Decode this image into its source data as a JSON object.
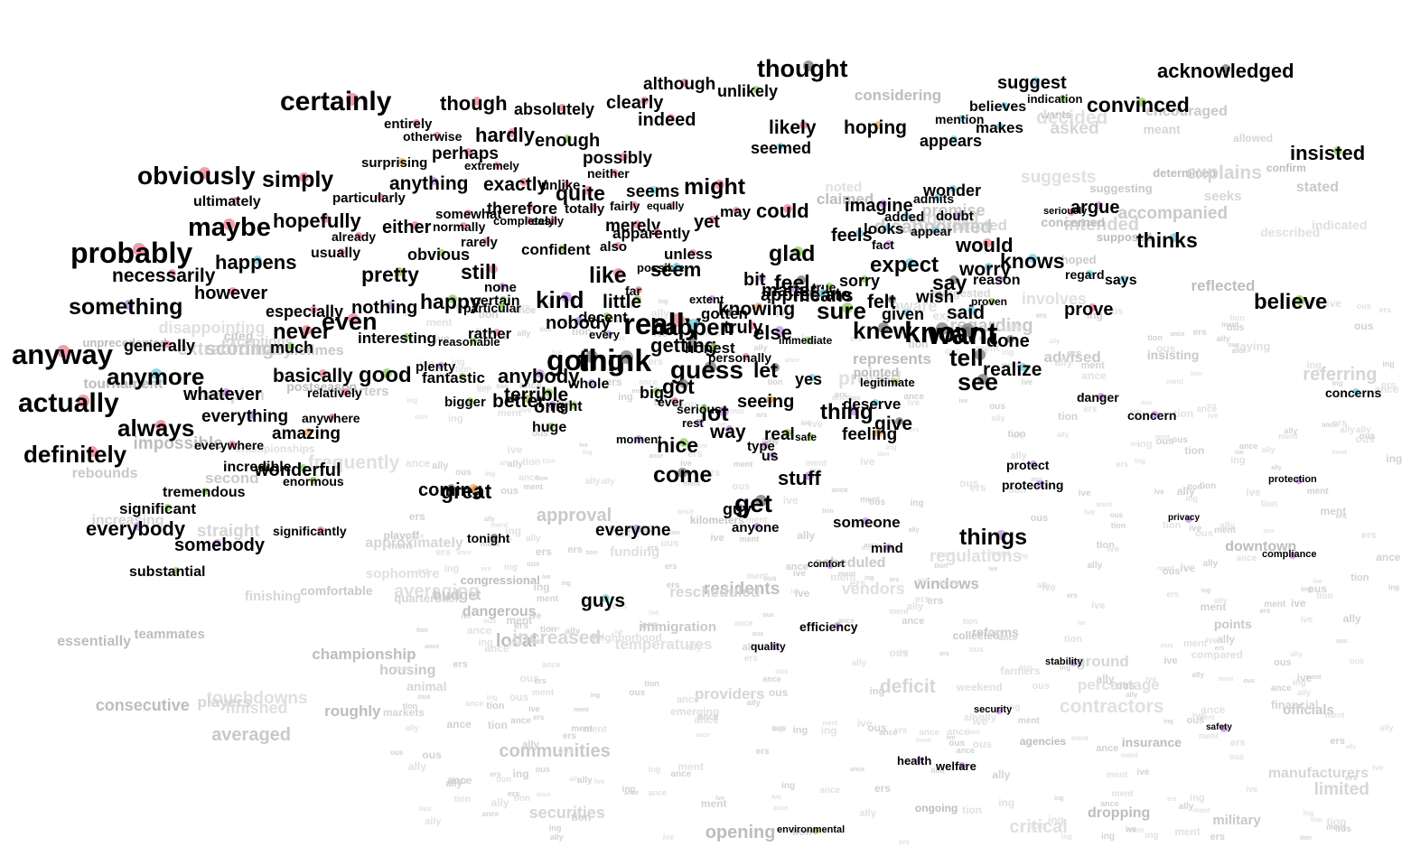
{
  "words": [
    {
      "text": "certainly",
      "c": "#f28b9b"
    },
    {
      "text": "obviously",
      "c": "#f28b9b"
    },
    {
      "text": "simply",
      "c": "#f28b9b"
    },
    {
      "text": "maybe",
      "c": "#f28b9b"
    },
    {
      "text": "probably",
      "c": "#f28b9b"
    },
    {
      "text": "hopefully",
      "c": "#f28b9b"
    },
    {
      "text": "ultimately",
      "c": "#f28b9b"
    },
    {
      "text": "particularly",
      "c": "#f28b9b"
    },
    {
      "text": "happens",
      "c": "#7fd3e8"
    },
    {
      "text": "necessarily",
      "c": "#f28b9b"
    },
    {
      "text": "usually",
      "c": "#f28b9b"
    },
    {
      "text": "already",
      "c": "#f28b9b"
    },
    {
      "text": "something",
      "c": "#c79be8"
    },
    {
      "text": "however",
      "c": "#f28b9b"
    },
    {
      "text": "especially",
      "c": "#f28b9b"
    },
    {
      "text": "anyway",
      "c": "#f28b9b"
    },
    {
      "text": "generally",
      "c": "#f28b9b"
    },
    {
      "text": "never",
      "c": "#f28b9b"
    },
    {
      "text": "much",
      "c": "#9bd36b"
    },
    {
      "text": "even",
      "c": "#f28b9b"
    },
    {
      "text": "anymore",
      "c": "#7fd3e8"
    },
    {
      "text": "actually",
      "c": "#f28b9b"
    },
    {
      "text": "whatever",
      "c": "#c79be8"
    },
    {
      "text": "basically",
      "c": "#f28b9b"
    },
    {
      "text": "relatively",
      "c": "#f28b9b"
    },
    {
      "text": "always",
      "c": "#f28b9b"
    },
    {
      "text": "everything",
      "c": "#c79be8"
    },
    {
      "text": "anywhere",
      "c": "#f28b9b"
    },
    {
      "text": "definitely",
      "c": "#f28b9b"
    },
    {
      "text": "amazing",
      "c": "#f5b36b"
    },
    {
      "text": "everywhere",
      "c": "#f28b9b"
    },
    {
      "text": "incredible",
      "c": "#9bd36b"
    },
    {
      "text": "wonderful",
      "c": "#9bd36b"
    },
    {
      "text": "enormous",
      "c": "#9bd36b"
    },
    {
      "text": "tremendous",
      "c": "#9bd36b"
    },
    {
      "text": "significant",
      "c": "#9bd36b"
    },
    {
      "text": "everybody",
      "c": "#c79be8"
    },
    {
      "text": "somebody",
      "c": "#c79be8"
    },
    {
      "text": "significantly",
      "c": "#f28b9b"
    },
    {
      "text": "substantial",
      "c": "#9bd36b"
    },
    {
      "text": "though",
      "c": "#f28b9b"
    },
    {
      "text": "absolutely",
      "c": "#f28b9b"
    },
    {
      "text": "clearly",
      "c": "#f28b9b"
    },
    {
      "text": "although",
      "c": "#f28b9b"
    },
    {
      "text": "unlikely",
      "c": "#9bd36b"
    },
    {
      "text": "thought",
      "c": "#888888"
    },
    {
      "text": "indeed",
      "c": "#f28b9b"
    },
    {
      "text": "entirely",
      "c": "#f28b9b"
    },
    {
      "text": "otherwise",
      "c": "#f28b9b"
    },
    {
      "text": "hardly",
      "c": "#f28b9b"
    },
    {
      "text": "enough",
      "c": "#9bd36b"
    },
    {
      "text": "perhaps",
      "c": "#f28b9b"
    },
    {
      "text": "extremely",
      "c": "#f28b9b"
    },
    {
      "text": "surprising",
      "c": "#f5b36b"
    },
    {
      "text": "possibly",
      "c": "#f28b9b"
    },
    {
      "text": "neither",
      "c": "#f28b9b"
    },
    {
      "text": "anything",
      "c": "#c79be8"
    },
    {
      "text": "exactly",
      "c": "#f28b9b"
    },
    {
      "text": "unlike",
      "c": "#f28b9b"
    },
    {
      "text": "quite",
      "c": "#f28b9b"
    },
    {
      "text": "seems",
      "c": "#7fd3e8"
    },
    {
      "text": "might",
      "c": "#f28b9b"
    },
    {
      "text": "therefore",
      "c": "#f28b9b"
    },
    {
      "text": "totally",
      "c": "#f28b9b"
    },
    {
      "text": "fairly",
      "c": "#f28b9b"
    },
    {
      "text": "equally",
      "c": "#f28b9b"
    },
    {
      "text": "somewhat",
      "c": "#f28b9b"
    },
    {
      "text": "either",
      "c": "#f28b9b"
    },
    {
      "text": "completely",
      "c": "#f28b9b"
    },
    {
      "text": "easily",
      "c": "#f28b9b"
    },
    {
      "text": "normally",
      "c": "#f28b9b"
    },
    {
      "text": "merely",
      "c": "#f28b9b"
    },
    {
      "text": "apparently",
      "c": "#f28b9b"
    },
    {
      "text": "yet",
      "c": "#f28b9b"
    },
    {
      "text": "may",
      "c": "#f28b9b"
    },
    {
      "text": "could",
      "c": "#f28b9b"
    },
    {
      "text": "rarely",
      "c": "#f28b9b"
    },
    {
      "text": "obvious",
      "c": "#9bd36b"
    },
    {
      "text": "confident",
      "c": "#9bd36b"
    },
    {
      "text": "also",
      "c": "#f28b9b"
    },
    {
      "text": "unless",
      "c": "#f28b9b"
    },
    {
      "text": "possible",
      "c": "#9bd36b"
    },
    {
      "text": "seem",
      "c": "#7fd3e8"
    },
    {
      "text": "pretty",
      "c": "#9bd36b"
    },
    {
      "text": "still",
      "c": "#f28b9b"
    },
    {
      "text": "like",
      "c": "#f28b9b"
    },
    {
      "text": "none",
      "c": "#c79be8"
    },
    {
      "text": "nothing",
      "c": "#c79be8"
    },
    {
      "text": "happy",
      "c": "#9bd36b"
    },
    {
      "text": "certain",
      "c": "#9bd36b"
    },
    {
      "text": "particular",
      "c": "#9bd36b"
    },
    {
      "text": "kind",
      "c": "#c79be8"
    },
    {
      "text": "far",
      "c": "#f28b9b"
    },
    {
      "text": "little",
      "c": "#9bd36b"
    },
    {
      "text": "decent",
      "c": "#9bd36b"
    },
    {
      "text": "nobody",
      "c": "#c79be8"
    },
    {
      "text": "interesting",
      "c": "#9bd36b"
    },
    {
      "text": "reasonable",
      "c": "#9bd36b"
    },
    {
      "text": "rather",
      "c": "#f28b9b"
    },
    {
      "text": "every",
      "c": "#c79be8"
    },
    {
      "text": "plenty",
      "c": "#c79be8"
    },
    {
      "text": "good",
      "c": "#9bd36b"
    },
    {
      "text": "fantastic",
      "c": "#9bd36b"
    },
    {
      "text": "anybody",
      "c": "#c79be8"
    },
    {
      "text": "going",
      "c": "#888888"
    },
    {
      "text": "think",
      "c": "#888888"
    },
    {
      "text": "whole",
      "c": "#c79be8"
    },
    {
      "text": "terrible",
      "c": "#9bd36b"
    },
    {
      "text": "bigger",
      "c": "#9bd36b"
    },
    {
      "text": "better",
      "c": "#9bd36b"
    },
    {
      "text": "one",
      "c": "#c79be8"
    },
    {
      "text": "right",
      "c": "#9bd36b"
    },
    {
      "text": "huge",
      "c": "#9bd36b"
    },
    {
      "text": "really",
      "c": "#f28b9b"
    },
    {
      "text": "happen",
      "c": "#7fd3e8"
    },
    {
      "text": "getting",
      "c": "#888888"
    },
    {
      "text": "honest",
      "c": "#9bd36b"
    },
    {
      "text": "guess",
      "c": "#888888"
    },
    {
      "text": "let",
      "c": "#888888"
    },
    {
      "text": "personally",
      "c": "#f28b9b"
    },
    {
      "text": "got",
      "c": "#888888"
    },
    {
      "text": "big",
      "c": "#9bd36b"
    },
    {
      "text": "ever",
      "c": "#f28b9b"
    },
    {
      "text": "lot",
      "c": "#c79be8"
    },
    {
      "text": "serious",
      "c": "#9bd36b"
    },
    {
      "text": "rest",
      "c": "#c79be8"
    },
    {
      "text": "way",
      "c": "#c79be8"
    },
    {
      "text": "moment",
      "c": "#c79be8"
    },
    {
      "text": "nice",
      "c": "#9bd36b"
    },
    {
      "text": "come",
      "c": "#888888"
    },
    {
      "text": "coming",
      "c": "#888888"
    },
    {
      "text": "great",
      "c": "#f5b36b"
    },
    {
      "text": "tonight",
      "c": "#888888"
    },
    {
      "text": "everyone",
      "c": "#c79be8"
    },
    {
      "text": "guy",
      "c": "#c79be8"
    },
    {
      "text": "get",
      "c": "#888888"
    },
    {
      "text": "anyone",
      "c": "#c79be8"
    },
    {
      "text": "guys",
      "c": "#7fd3e8"
    },
    {
      "text": "extent",
      "c": "#c79be8"
    },
    {
      "text": "knowing",
      "c": "#f5b36b"
    },
    {
      "text": "gotten",
      "c": "#888888"
    },
    {
      "text": "truly",
      "c": "#f28b9b"
    },
    {
      "text": "else",
      "c": "#c79be8"
    },
    {
      "text": "immediate",
      "c": "#9bd36b"
    },
    {
      "text": "bit",
      "c": "#c79be8"
    },
    {
      "text": "feel",
      "c": "#888888"
    },
    {
      "text": "true",
      "c": "#9bd36b"
    },
    {
      "text": "appreciate",
      "c": "#888888"
    },
    {
      "text": "matter",
      "c": "#c79be8"
    },
    {
      "text": "means",
      "c": "#7fd3e8"
    },
    {
      "text": "glad",
      "c": "#9bd36b"
    },
    {
      "text": "seeing",
      "c": "#f5b36b"
    },
    {
      "text": "real",
      "c": "#9bd36b"
    },
    {
      "text": "safe",
      "c": "#9bd36b"
    },
    {
      "text": "type",
      "c": "#c79be8"
    },
    {
      "text": "us",
      "c": "#c79be8"
    },
    {
      "text": "stuff",
      "c": "#c79be8"
    },
    {
      "text": "someone",
      "c": "#c79be8"
    },
    {
      "text": "mind",
      "c": "#c79be8"
    },
    {
      "text": "yes",
      "c": "#7fd3e8"
    },
    {
      "text": "legitimate",
      "c": "#9bd36b"
    },
    {
      "text": "thing",
      "c": "#c79be8"
    },
    {
      "text": "deserve",
      "c": "#7fd3e8"
    },
    {
      "text": "give",
      "c": "#888888"
    },
    {
      "text": "feeling",
      "c": "#f5b36b"
    },
    {
      "text": "likely",
      "c": "#f28b9b"
    },
    {
      "text": "seemed",
      "c": "#7fd3e8"
    },
    {
      "text": "hoping",
      "c": "#f5b36b"
    },
    {
      "text": "imagine",
      "c": "#c79be8"
    },
    {
      "text": "feels",
      "c": "#7fd3e8"
    },
    {
      "text": "looks",
      "c": "#7fd3e8"
    },
    {
      "text": "added",
      "c": "#7fd3e8"
    },
    {
      "text": "fact",
      "c": "#c79be8"
    },
    {
      "text": "expect",
      "c": "#7fd3e8"
    },
    {
      "text": "sorry",
      "c": "#9bd36b"
    },
    {
      "text": "sure",
      "c": "#9bd36b"
    },
    {
      "text": "felt",
      "c": "#888888"
    },
    {
      "text": "given",
      "c": "#7fd3e8"
    },
    {
      "text": "knew",
      "c": "#888888"
    },
    {
      "text": "know",
      "c": "#888888"
    },
    {
      "text": "want",
      "c": "#888888"
    },
    {
      "text": "suggest",
      "c": "#7fd3e8"
    },
    {
      "text": "indication",
      "c": "#9bd36b"
    },
    {
      "text": "believes",
      "c": "#7fd3e8"
    },
    {
      "text": "mention",
      "c": "#7fd3e8"
    },
    {
      "text": "makes",
      "c": "#7fd3e8"
    },
    {
      "text": "appears",
      "c": "#7fd3e8"
    },
    {
      "text": "convinced",
      "c": "#9bd36b"
    },
    {
      "text": "acknowledged",
      "c": "#888888"
    },
    {
      "text": "insisted",
      "c": "#9bd36b"
    },
    {
      "text": "wonder",
      "c": "#7fd3e8"
    },
    {
      "text": "admits",
      "c": "#7fd3e8"
    },
    {
      "text": "doubt",
      "c": "#c79be8"
    },
    {
      "text": "appear",
      "c": "#7fd3e8"
    },
    {
      "text": "seriously",
      "c": "#f28b9b"
    },
    {
      "text": "argue",
      "c": "#c79be8"
    },
    {
      "text": "thinks",
      "c": "#7fd3e8"
    },
    {
      "text": "would",
      "c": "#f28b9b"
    },
    {
      "text": "knows",
      "c": "#7fd3e8"
    },
    {
      "text": "worry",
      "c": "#7fd3e8"
    },
    {
      "text": "reason",
      "c": "#c79be8"
    },
    {
      "text": "regard",
      "c": "#7fd3e8"
    },
    {
      "text": "says",
      "c": "#7fd3e8"
    },
    {
      "text": "say",
      "c": "#888888"
    },
    {
      "text": "wish",
      "c": "#888888"
    },
    {
      "text": "proven",
      "c": "#9bd36b"
    },
    {
      "text": "said",
      "c": "#7fd3e8"
    },
    {
      "text": "prove",
      "c": "#f28b9b"
    },
    {
      "text": "believe",
      "c": "#9bd36b"
    },
    {
      "text": "done",
      "c": "#888888"
    },
    {
      "text": "tell",
      "c": "#888888"
    },
    {
      "text": "realize",
      "c": "#7fd3e8"
    },
    {
      "text": "see",
      "c": "#888888"
    },
    {
      "text": "danger",
      "c": "#c79be8"
    },
    {
      "text": "concern",
      "c": "#c79be8"
    },
    {
      "text": "concerns",
      "c": "#7fd3e8"
    },
    {
      "text": "protect",
      "c": "#c79be8"
    },
    {
      "text": "protecting",
      "c": "#c79be8"
    },
    {
      "text": "protection",
      "c": "#c79be8"
    },
    {
      "text": "privacy",
      "c": "#c79be8"
    },
    {
      "text": "compliance",
      "c": "#c79be8"
    },
    {
      "text": "things",
      "c": "#c79be8"
    },
    {
      "text": "comfort",
      "c": "#c79be8"
    },
    {
      "text": "efficiency",
      "c": "#c79be8"
    },
    {
      "text": "quality",
      "c": "#c79be8"
    },
    {
      "text": "stability",
      "c": "#c79be8"
    },
    {
      "text": "security",
      "c": "#c79be8"
    },
    {
      "text": "safety",
      "c": "#c79be8"
    },
    {
      "text": "health",
      "c": "#c79be8"
    },
    {
      "text": "welfare",
      "c": "#c79be8"
    },
    {
      "text": "environmental",
      "c": "#9bd36b"
    }
  ],
  "faint_words": [
    "hoped",
    "prompted",
    "represents",
    "suggests",
    "encouraged",
    "suggested",
    "supposed",
    "proved",
    "disappointed",
    "surprised",
    "determined",
    "indicated",
    "suggesting",
    "seeks",
    "pointed",
    "described",
    "accompanied",
    "meant",
    "wants",
    "involves",
    "stated",
    "intended",
    "concerned",
    "experts",
    "regarding",
    "referring",
    "reflected",
    "noted",
    "promise",
    "explains",
    "claimed",
    "decided",
    "advised",
    "asked",
    "confirm",
    "aware",
    "insisting",
    "allowed",
    "considering",
    "saying",
    "cited",
    "exceptions",
    "impossible",
    "remarkable",
    "sometimes",
    "increasing",
    "essentially",
    "frequently",
    "comfortable",
    "extraordinary",
    "unprecedented",
    "disappointing",
    "second",
    "approximately",
    "consecutive",
    "finished",
    "averaged",
    "straight",
    "roughly",
    "averaging",
    "scoring",
    "finishing",
    "championship",
    "touchdowns",
    "rebounds",
    "quarterback",
    "postseason",
    "championships",
    "playoff",
    "champion",
    "teammates",
    "sophomore",
    "starters",
    "players",
    "tournament",
    "temperatures",
    "kilometers",
    "ground",
    "downtown",
    "neighborhood",
    "communities",
    "animal",
    "residents",
    "vendors",
    "military",
    "manufacturers",
    "congressional",
    "contractors",
    "immigration",
    "securities",
    "insurance",
    "regulations",
    "officials",
    "providers",
    "local",
    "percentage",
    "collected",
    "increased",
    "dropping",
    "compared",
    "points",
    "season",
    "opening",
    "weekend",
    "scheduled",
    "rescheduled",
    "windows",
    "farmers",
    "housing",
    "markets",
    "dangerous",
    "critical",
    "approval",
    "limited",
    "ongoing",
    "emerging",
    "reforms",
    "financial",
    "agencies",
    "funding",
    "budget",
    "deficit"
  ]
}
